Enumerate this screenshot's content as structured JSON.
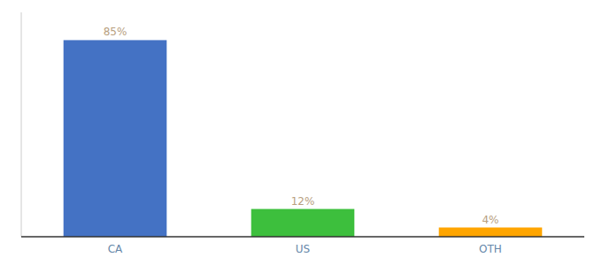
{
  "chart_data": {
    "type": "bar",
    "categories": [
      "CA",
      "US",
      "OTH"
    ],
    "values": [
      85,
      12,
      4
    ],
    "value_labels": [
      "85%",
      "12%",
      "4%"
    ],
    "colors": [
      "#4472C4",
      "#3DBF3D",
      "#FFA500"
    ],
    "ylim": [
      0,
      97
    ],
    "data_labels": true,
    "tick_labels": "x",
    "grid": false
  }
}
